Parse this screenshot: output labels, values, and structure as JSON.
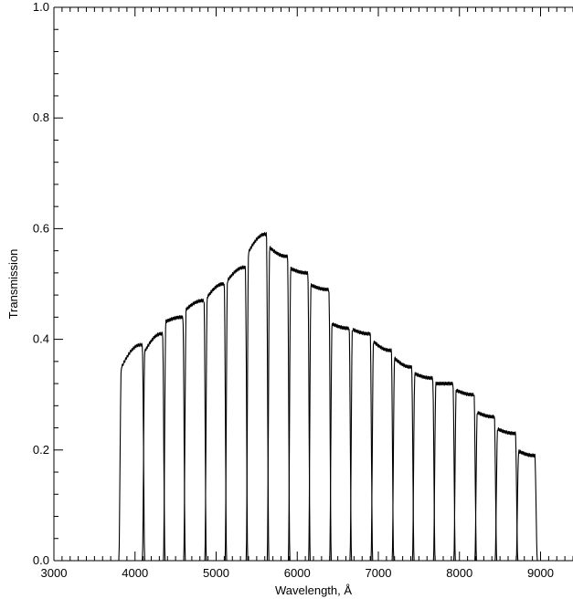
{
  "chart_data": {
    "type": "line",
    "title": "",
    "xlabel": "Wavelength, Å",
    "ylabel": "Transmission",
    "xlim": [
      3000,
      9400
    ],
    "ylim": [
      0.0,
      1.0
    ],
    "x_ticks": [
      3000,
      4000,
      5000,
      6000,
      7000,
      8000,
      9000
    ],
    "x_tick_labels": [
      "3000",
      "4000",
      "5000",
      "6000",
      "7000",
      "8000",
      "9000"
    ],
    "y_ticks": [
      0.0,
      0.2,
      0.4,
      0.6,
      0.8,
      1.0
    ],
    "y_tick_labels": [
      "0.0",
      "0.2",
      "0.4",
      "0.6",
      "0.8",
      "1.0"
    ],
    "grid": false,
    "legend": "none",
    "line_color": "#000000",
    "series": [
      {
        "start": 3800,
        "end": 4120,
        "peak_low": 0.34,
        "peak_high": 0.39
      },
      {
        "start": 4090,
        "end": 4370,
        "peak_low": 0.37,
        "peak_high": 0.41
      },
      {
        "start": 4350,
        "end": 4620,
        "peak_low": 0.43,
        "peak_high": 0.44
      },
      {
        "start": 4600,
        "end": 4880,
        "peak_low": 0.45,
        "peak_high": 0.47
      },
      {
        "start": 4860,
        "end": 5130,
        "peak_low": 0.47,
        "peak_high": 0.5
      },
      {
        "start": 5110,
        "end": 5390,
        "peak_low": 0.5,
        "peak_high": 0.53
      },
      {
        "start": 5370,
        "end": 5650,
        "peak_low": 0.55,
        "peak_high": 0.59
      },
      {
        "start": 5630,
        "end": 5910,
        "peak_low": 0.57,
        "peak_high": 0.55
      },
      {
        "start": 5890,
        "end": 6160,
        "peak_low": 0.53,
        "peak_high": 0.52
      },
      {
        "start": 6140,
        "end": 6420,
        "peak_low": 0.5,
        "peak_high": 0.49
      },
      {
        "start": 6400,
        "end": 6670,
        "peak_low": 0.43,
        "peak_high": 0.42
      },
      {
        "start": 6650,
        "end": 6930,
        "peak_low": 0.42,
        "peak_high": 0.41
      },
      {
        "start": 6910,
        "end": 7190,
        "peak_low": 0.4,
        "peak_high": 0.38
      },
      {
        "start": 7170,
        "end": 7440,
        "peak_low": 0.37,
        "peak_high": 0.35
      },
      {
        "start": 7420,
        "end": 7700,
        "peak_low": 0.34,
        "peak_high": 0.33
      },
      {
        "start": 7680,
        "end": 7950,
        "peak_low": 0.32,
        "peak_high": 0.32
      },
      {
        "start": 7930,
        "end": 8210,
        "peak_low": 0.31,
        "peak_high": 0.3
      },
      {
        "start": 8190,
        "end": 8460,
        "peak_low": 0.27,
        "peak_high": 0.26
      },
      {
        "start": 8440,
        "end": 8720,
        "peak_low": 0.24,
        "peak_high": 0.23
      },
      {
        "start": 8700,
        "end": 8960,
        "peak_low": 0.2,
        "peak_high": 0.19
      }
    ]
  }
}
